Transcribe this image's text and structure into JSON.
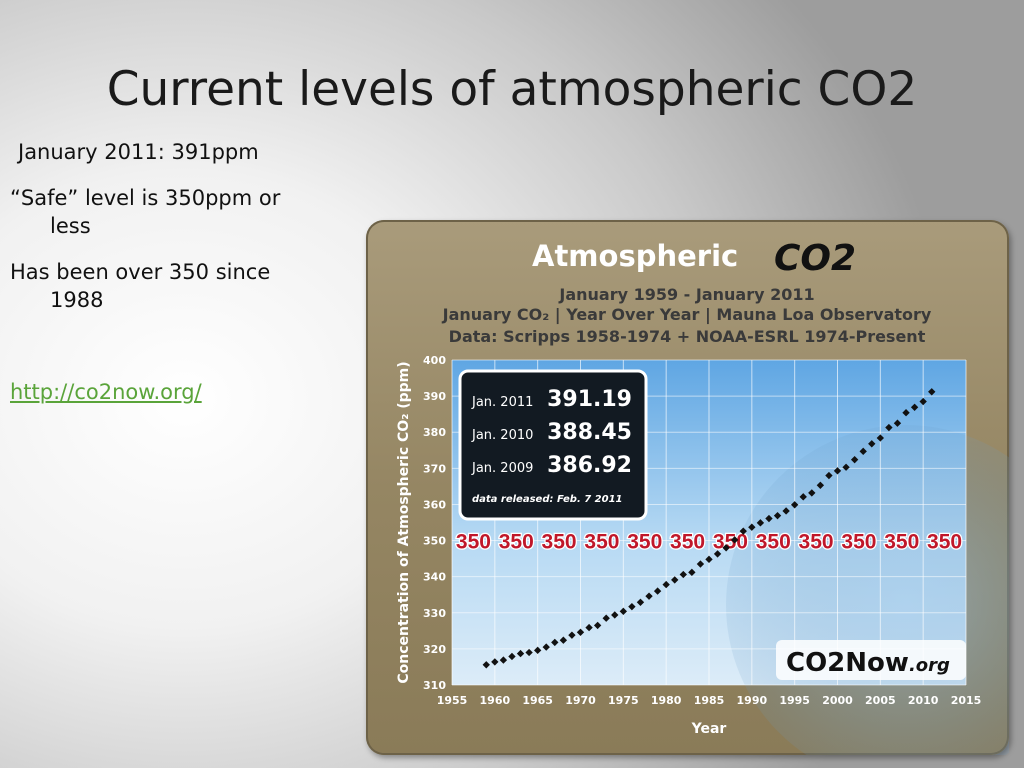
{
  "slide": {
    "title": "Current levels of atmospheric CO2",
    "bullets": [
      {
        "text": "January 2011:  391ppm"
      },
      {
        "line1": "“Safe” level is 350ppm or",
        "line2": "less"
      },
      {
        "line1": "Has been over 350 since",
        "line2": "1988"
      }
    ],
    "link": "http://co2now.org/"
  },
  "chart_data": {
    "type": "scatter",
    "title": "Atmospheric",
    "title_co2": "CO2",
    "subtitle": "January 1959 - January 2011",
    "subtitle2": "January CO₂   |   Year Over Year   |   Mauna Loa Observatory",
    "subtitle3": "Data:  Scripps 1958-1974 + NOAA-ESRL 1974-Present",
    "ylabel": "Concentration of Atmospheric CO₂ (ppm)",
    "xlabel": "Year",
    "xlim": [
      1955,
      2015
    ],
    "ylim": [
      310,
      400
    ],
    "x_ticks": [
      1955,
      1960,
      1965,
      1970,
      1975,
      1980,
      1985,
      1990,
      1995,
      2000,
      2005,
      2010,
      2015
    ],
    "y_ticks": [
      310,
      320,
      330,
      340,
      350,
      360,
      370,
      380,
      390,
      400
    ],
    "reference_line": {
      "value": 350,
      "label": "350",
      "color": "#c0172a"
    },
    "series": [
      {
        "x": [
          1959,
          1960,
          1961,
          1962,
          1963,
          1964,
          1965,
          1966,
          1967,
          1968,
          1969,
          1970,
          1971,
          1972,
          1973,
          1974,
          1975,
          1976,
          1977,
          1978,
          1979,
          1980,
          1981,
          1982,
          1983,
          1984,
          1985,
          1986,
          1987,
          1988,
          1989,
          1990,
          1991,
          1992,
          1993,
          1994,
          1995,
          1996,
          1997,
          1998,
          1999,
          2000,
          2001,
          2002,
          2003,
          2004,
          2005,
          2006,
          2007,
          2008,
          2009,
          2010,
          2011
        ],
        "y": [
          315.6,
          316.4,
          316.9,
          317.9,
          318.7,
          319.0,
          319.6,
          320.5,
          321.8,
          322.4,
          323.8,
          324.6,
          325.9,
          326.5,
          328.5,
          329.4,
          330.4,
          331.7,
          332.9,
          334.6,
          336.0,
          337.8,
          339.1,
          340.6,
          341.2,
          343.5,
          344.8,
          346.3,
          348.0,
          350.2,
          352.6,
          353.7,
          354.9,
          356.1,
          356.9,
          358.2,
          359.9,
          362.1,
          363.2,
          365.3,
          368.0,
          369.3,
          370.3,
          372.4,
          374.7,
          376.8,
          378.4,
          381.3,
          382.5,
          385.4,
          386.9,
          388.5,
          391.2
        ],
        "color": "#111111"
      }
    ],
    "annotation_box": {
      "rows": [
        {
          "label": "Jan. 2011",
          "value": "391.19"
        },
        {
          "label": "Jan. 2010",
          "value": "388.45"
        },
        {
          "label": "Jan. 2009",
          "value": "386.92"
        }
      ],
      "released": "data released:  Feb. 7 2011"
    },
    "logo": {
      "main": "CO2",
      "suffix": "Now",
      "domain": ".org"
    }
  }
}
